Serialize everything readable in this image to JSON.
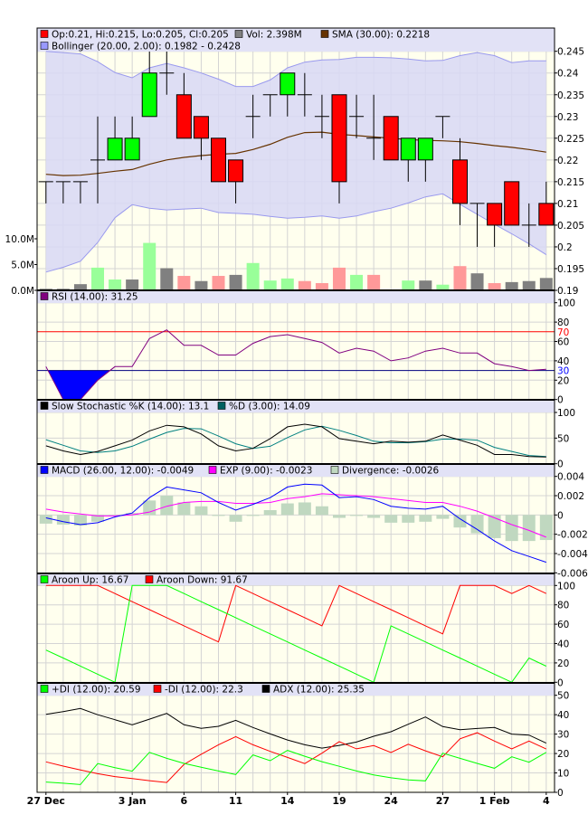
{
  "chart_data": [
    {
      "type": "candlestick",
      "x_labels": [
        {
          "index": 0,
          "label": "27 Dec"
        },
        {
          "index": 5,
          "label": "3 Jan"
        },
        {
          "index": 8,
          "label": "6"
        },
        {
          "index": 11,
          "label": "11"
        },
        {
          "index": 14,
          "label": "14"
        },
        {
          "index": 17,
          "label": "19"
        },
        {
          "index": 20,
          "label": "24"
        },
        {
          "index": 23,
          "label": "27"
        },
        {
          "index": 26,
          "label": "1 Feb"
        },
        {
          "index": 29,
          "label": "4"
        }
      ],
      "legend": [
        {
          "label": "Op:0.21, Hi:0.215, Lo:0.205, Cl:0.205",
          "color": "#ff0000"
        },
        {
          "label": "Vol: 2.398M",
          "color": "#808080"
        },
        {
          "label": "SMA (30.00): 0.2218",
          "color": "#663300"
        },
        {
          "label": "Bollinger (20.00, 2.00): 0.1982 - 0.2428",
          "color": "#9999ff"
        }
      ],
      "y_ticks": [
        "0.19",
        "0.195",
        "0.2",
        "0.205",
        "0.21",
        "0.215",
        "0.22",
        "0.225",
        "0.23",
        "0.235",
        "0.24",
        "0.245"
      ],
      "ylim": [
        0.19,
        0.245
      ],
      "volume_ticks": [
        "0.0M",
        "5.0M",
        "10.0M"
      ],
      "open": [
        0.215,
        0.215,
        0.215,
        0.22,
        0.22,
        0.22,
        0.23,
        0.24,
        0.235,
        0.23,
        0.225,
        0.22,
        0.23,
        0.235,
        0.235,
        0.235,
        0.23,
        0.235,
        0.23,
        0.225,
        0.23,
        0.22,
        0.22,
        0.23,
        0.22,
        0.21,
        0.21,
        0.215,
        0.205,
        0.21
      ],
      "high": [
        0.215,
        0.215,
        0.215,
        0.23,
        0.23,
        0.23,
        0.246,
        0.246,
        0.24,
        0.23,
        0.225,
        0.22,
        0.235,
        0.235,
        0.24,
        0.24,
        0.235,
        0.235,
        0.235,
        0.235,
        0.23,
        0.225,
        0.225,
        0.23,
        0.225,
        0.21,
        0.21,
        0.215,
        0.21,
        0.215
      ],
      "low": [
        0.21,
        0.21,
        0.21,
        0.21,
        0.22,
        0.22,
        0.23,
        0.235,
        0.225,
        0.22,
        0.215,
        0.21,
        0.225,
        0.23,
        0.23,
        0.23,
        0.225,
        0.21,
        0.225,
        0.22,
        0.22,
        0.215,
        0.215,
        0.225,
        0.205,
        0.2,
        0.2,
        0.205,
        0.2,
        0.205
      ],
      "close": [
        0.215,
        0.215,
        0.215,
        0.22,
        0.225,
        0.225,
        0.24,
        0.24,
        0.225,
        0.225,
        0.215,
        0.215,
        0.23,
        0.235,
        0.24,
        0.235,
        0.23,
        0.215,
        0.23,
        0.225,
        0.22,
        0.225,
        0.225,
        0.23,
        0.21,
        0.21,
        0.205,
        0.205,
        0.205,
        0.205
      ],
      "volume_millions": [
        0.3,
        0.3,
        1.2,
        4.4,
        2.1,
        2.1,
        9.2,
        4.3,
        2.8,
        1.8,
        2.8,
        3.0,
        5.3,
        1.9,
        2.3,
        1.8,
        1.4,
        4.4,
        3.0,
        3.0,
        0,
        1.9,
        1.9,
        1.1,
        4.7,
        3.3,
        1.4,
        1.6,
        1.8,
        2.398
      ],
      "volume_direction": [
        "flat",
        "flat",
        "flat",
        "up",
        "up",
        "flat",
        "up",
        "flat",
        "down",
        "flat",
        "down",
        "flat",
        "up",
        "up",
        "up",
        "down",
        "down",
        "down",
        "up",
        "down",
        "flat",
        "up",
        "flat",
        "up",
        "down",
        "flat",
        "down",
        "flat",
        "flat",
        "flat"
      ],
      "sma": [
        0.2167,
        0.2164,
        0.2165,
        0.2169,
        0.2174,
        0.2178,
        0.219,
        0.22,
        0.2206,
        0.221,
        0.2213,
        0.2215,
        0.2224,
        0.2236,
        0.2252,
        0.2263,
        0.2264,
        0.2259,
        0.2256,
        0.2253,
        0.225,
        0.2247,
        0.2245,
        0.2244,
        0.2242,
        0.2238,
        0.2233,
        0.2229,
        0.2224,
        0.2218
      ],
      "bollinger_upper": [
        0.245,
        0.2447,
        0.2444,
        0.2426,
        0.2401,
        0.2389,
        0.2412,
        0.2422,
        0.2412,
        0.24,
        0.2386,
        0.2369,
        0.2369,
        0.2384,
        0.2412,
        0.2425,
        0.243,
        0.2431,
        0.2436,
        0.2436,
        0.2435,
        0.2432,
        0.2428,
        0.2429,
        0.244,
        0.2447,
        0.244,
        0.2424,
        0.2428,
        0.2428
      ],
      "bollinger_lower": [
        0.1942,
        0.1953,
        0.1967,
        0.201,
        0.2067,
        0.2097,
        0.2089,
        0.2085,
        0.2087,
        0.2089,
        0.2079,
        0.2077,
        0.2075,
        0.207,
        0.2066,
        0.2068,
        0.2071,
        0.2066,
        0.2071,
        0.2081,
        0.2089,
        0.2101,
        0.2115,
        0.2122,
        0.2098,
        0.2075,
        0.2052,
        0.203,
        0.2007,
        0.1982
      ],
      "colors": {
        "up": "#00ff00",
        "down": "#ff0000",
        "vol_up": "#99ff99",
        "vol_down": "#ff9999",
        "vol_flat": "#808080",
        "sma": "#663300",
        "band_fill": "#d8d8f4",
        "band_line": "#9999ee"
      }
    },
    {
      "type": "line",
      "legend": [
        {
          "label": "RSI (14.00): 31.25",
          "color": "#800080"
        }
      ],
      "y_ticks": [
        "0",
        "20",
        "40",
        "60",
        "80",
        "100"
      ],
      "ylim": [
        0,
        100
      ],
      "levels": [
        {
          "label": "70",
          "value": 70,
          "color": "#ff0000"
        },
        {
          "label": "30",
          "value": 30,
          "color": "#0000ff"
        }
      ],
      "rsi": [
        34,
        0,
        0,
        20,
        34,
        34,
        63,
        72,
        56,
        56,
        46,
        46,
        58,
        65,
        67,
        63,
        59,
        48,
        53,
        50,
        40,
        43,
        50,
        53,
        48,
        48,
        37,
        34,
        30,
        31.25
      ]
    },
    {
      "type": "line",
      "legend": [
        {
          "label": "Slow Stochastic %K (14.00): 13.1",
          "color": "#000000"
        },
        {
          "label": "%D (3.00): 14.09",
          "color": "#006060"
        }
      ],
      "y_ticks": [
        "0",
        "50",
        "100"
      ],
      "ylim": [
        0,
        100
      ],
      "k": [
        35,
        25,
        18,
        24,
        35,
        46,
        64,
        75,
        72,
        58,
        35,
        25,
        30,
        49,
        72,
        77,
        72,
        49,
        44,
        39,
        44,
        42,
        44,
        56,
        46,
        36,
        18,
        18,
        14,
        13.1
      ],
      "d": [
        47,
        36,
        25,
        22,
        25,
        34,
        48,
        61,
        69,
        68,
        54,
        39,
        30,
        34,
        51,
        66,
        73,
        65,
        55,
        44,
        41,
        41,
        43,
        48,
        48,
        46,
        32,
        24,
        16,
        14.09
      ]
    },
    {
      "type": "line",
      "legend": [
        {
          "label": "MACD (26.00, 12.00): -0.0049",
          "color": "#0000ff"
        },
        {
          "label": "EXP (9.00): -0.0023",
          "color": "#ff00ff"
        },
        {
          "label": "Divergence: -0.0026",
          "color": "#c0d8c0"
        }
      ],
      "y_ticks": [
        "-0.006",
        "-0.004",
        "-0.002",
        "0",
        "0.002",
        "0.004"
      ],
      "ylim": [
        -0.006,
        0.004
      ],
      "macd": [
        -0.0003,
        -0.0007,
        -0.001,
        -0.0008,
        -0.0002,
        0.0002,
        0.0018,
        0.0029,
        0.0026,
        0.0023,
        0.0013,
        0.0005,
        0.0011,
        0.0018,
        0.0029,
        0.0032,
        0.0031,
        0.0018,
        0.0019,
        0.0016,
        0.0009,
        0.0007,
        0.0006,
        0.0009,
        -0.0004,
        -0.0015,
        -0.0027,
        -0.0037,
        -0.0043,
        -0.0049
      ],
      "exp": [
        0.0006,
        0.0003,
        0.0001,
        -0.0001,
        -0.0001,
        0,
        0.0003,
        0.0009,
        0.0013,
        0.0014,
        0.0014,
        0.0012,
        0.0012,
        0.0013,
        0.0017,
        0.0019,
        0.0022,
        0.0021,
        0.002,
        0.0019,
        0.0017,
        0.0015,
        0.0013,
        0.0013,
        0.0009,
        0.0004,
        -0.0003,
        -0.001,
        -0.0016,
        -0.0023
      ],
      "divergence": [
        -0.0009,
        -0.001,
        -0.0011,
        -0.0007,
        -0.0001,
        0.0002,
        0.0015,
        0.002,
        0.0013,
        0.0009,
        -0.0001,
        -0.0007,
        -0.0001,
        0.0005,
        0.0012,
        0.0013,
        0.0009,
        -0.0003,
        -0.0001,
        -0.0003,
        -0.0008,
        -0.0008,
        -0.0007,
        -0.0004,
        -0.0013,
        -0.0019,
        -0.0024,
        -0.0027,
        -0.0027,
        -0.0026
      ]
    },
    {
      "type": "line",
      "legend": [
        {
          "label": "Aroon Up: 16.67",
          "color": "#00ff00"
        },
        {
          "label": "Aroon Down: 91.67",
          "color": "#ff0000"
        }
      ],
      "y_ticks": [
        "0",
        "20",
        "40",
        "60",
        "80",
        "100"
      ],
      "ylim": [
        0,
        100
      ],
      "up": [
        33.3,
        25,
        16.7,
        8.3,
        0,
        100,
        100,
        100,
        91.7,
        83.3,
        75,
        66.7,
        58.3,
        50,
        41.7,
        33.3,
        25,
        16.7,
        8.3,
        0,
        58.3,
        50,
        41.7,
        33.3,
        25,
        16.7,
        8.3,
        0,
        25,
        16.67
      ],
      "down": [
        100,
        100,
        100,
        100,
        91.7,
        83.3,
        75,
        66.7,
        58.3,
        50,
        41.7,
        100,
        91.7,
        83.3,
        75,
        66.7,
        58.3,
        100,
        91.7,
        83.3,
        75,
        66.7,
        58.3,
        50,
        100,
        100,
        100,
        91.7,
        100,
        91.67
      ]
    },
    {
      "type": "line",
      "legend": [
        {
          "label": "+DI (12.00): 20.59",
          "color": "#00ff00"
        },
        {
          "label": "-DI (12.00): 22.3",
          "color": "#ff0000"
        },
        {
          "label": "ADX (12.00): 25.35",
          "color": "#000000"
        }
      ],
      "y_ticks": [
        "0",
        "10",
        "20",
        "30",
        "40",
        "50"
      ],
      "ylim": [
        0,
        50
      ],
      "plus_di": [
        5.3,
        4.7,
        4,
        14.8,
        12.7,
        10.9,
        20.6,
        17.5,
        14.9,
        12.9,
        11,
        9.2,
        19.3,
        16.3,
        21.6,
        18.6,
        15.8,
        13.4,
        11,
        9,
        7.5,
        6.4,
        5.9,
        20.2,
        17.5,
        14.9,
        12.4,
        18.3,
        15.5,
        20.59
      ],
      "minus_di": [
        15.7,
        13.5,
        11.5,
        9.6,
        8.1,
        7.1,
        6,
        5.1,
        14.4,
        19.6,
        24.5,
        28.7,
        24.5,
        21.1,
        18,
        14.8,
        20.2,
        26.1,
        22.4,
        24.1,
        20.5,
        24.8,
        21.4,
        18.3,
        27.6,
        30.7,
        26.4,
        22.4,
        26.4,
        22.3
      ],
      "adx": [
        40.2,
        41.6,
        43.2,
        40,
        37.4,
        34.8,
        37.7,
        40.7,
        34.8,
        33,
        34,
        37.1,
        33.4,
        30.1,
        27,
        24.5,
        22.8,
        24.2,
        25.9,
        28.9,
        31.2,
        35.1,
        38.8,
        33.9,
        32.3,
        32.9,
        33.4,
        30,
        29.5,
        25.35
      ]
    }
  ]
}
